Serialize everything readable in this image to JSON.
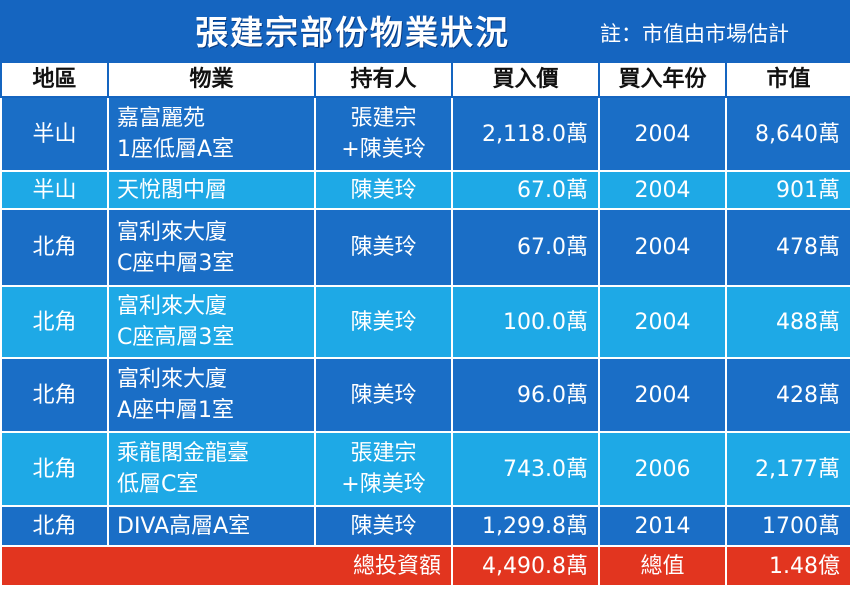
{
  "header": {
    "title": "張建宗部份物業狀況",
    "note": "註：市值由市場估計"
  },
  "table": {
    "columns": [
      "地區",
      "物業",
      "持有人",
      "買入價",
      "買入年份",
      "市值"
    ],
    "rows": [
      {
        "district": "半山",
        "property": [
          "嘉富麗苑",
          "1座低層A室"
        ],
        "owner": [
          "張建宗",
          "+陳美玲"
        ],
        "price": "2,118.0萬",
        "year": "2004",
        "value": "8,640萬"
      },
      {
        "district": "半山",
        "property": [
          "天悅閣中層"
        ],
        "owner": [
          "陳美玲"
        ],
        "price": "67.0萬",
        "year": "2004",
        "value": "901萬"
      },
      {
        "district": "北角",
        "property": [
          "富利來大廈",
          "C座中層3室"
        ],
        "owner": [
          "陳美玲"
        ],
        "price": "67.0萬",
        "year": "2004",
        "value": "478萬"
      },
      {
        "district": "北角",
        "property": [
          "富利來大廈",
          "C座高層3室"
        ],
        "owner": [
          "陳美玲"
        ],
        "price": "100.0萬",
        "year": "2004",
        "value": "488萬"
      },
      {
        "district": "北角",
        "property": [
          "富利來大廈",
          "A座中層1室"
        ],
        "owner": [
          "陳美玲"
        ],
        "price": "96.0萬",
        "year": "2004",
        "value": "428萬"
      },
      {
        "district": "北角",
        "property": [
          "乘龍閣金龍臺",
          "低層C室"
        ],
        "owner": [
          "張建宗",
          "+陳美玲"
        ],
        "price": "743.0萬",
        "year": "2006",
        "value": "2,177萬"
      },
      {
        "district": "北角",
        "property": [
          "DIVA高層A室"
        ],
        "owner": [
          "陳美玲"
        ],
        "price": "1,299.8萬",
        "year": "2014",
        "value": "1700萬"
      }
    ],
    "total": {
      "label": "總投資額",
      "price": "4,490.8萬",
      "value_label": "總值",
      "value": "1.48億"
    }
  },
  "colors": {
    "title_bg": "#1565c0",
    "row_dark": "#1a6ec6",
    "row_light": "#1ea9e6",
    "total_bg": "#e2351f"
  }
}
